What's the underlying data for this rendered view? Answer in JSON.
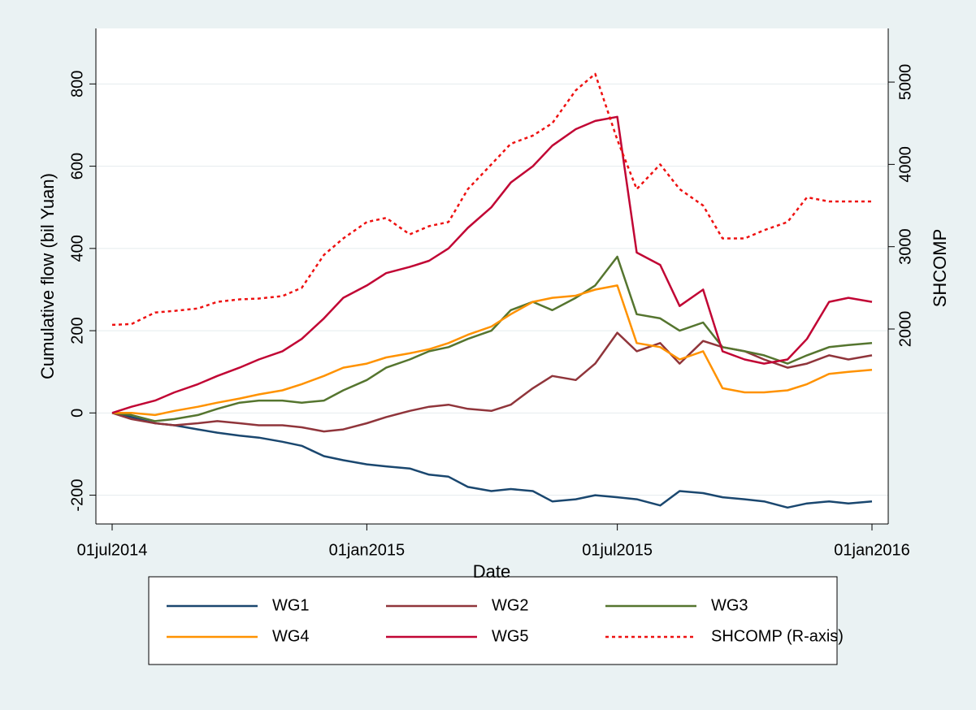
{
  "chart_data": {
    "type": "line",
    "x_title": "Date",
    "y_title": "Cumulative flow (bil Yuan)",
    "y2_title": "SHCOMP",
    "x": [
      "2014-07-01",
      "2014-07-15",
      "2014-08-01",
      "2014-08-15",
      "2014-09-01",
      "2014-09-15",
      "2014-10-01",
      "2014-10-15",
      "2014-11-01",
      "2014-11-15",
      "2014-12-01",
      "2014-12-15",
      "2015-01-01",
      "2015-01-15",
      "2015-02-01",
      "2015-02-15",
      "2015-03-01",
      "2015-03-15",
      "2015-04-01",
      "2015-04-15",
      "2015-05-01",
      "2015-05-15",
      "2015-06-01",
      "2015-06-15",
      "2015-07-01",
      "2015-07-15",
      "2015-08-01",
      "2015-08-15",
      "2015-09-01",
      "2015-09-15",
      "2015-10-01",
      "2015-10-15",
      "2015-11-01",
      "2015-11-15",
      "2015-12-01",
      "2015-12-15",
      "2016-01-01"
    ],
    "xlim": [
      "2014-07-01",
      "2016-01-01"
    ],
    "xticks": [
      {
        "value": "2014-07-01",
        "label": "01jul2014"
      },
      {
        "value": "2015-01-01",
        "label": "01jan2015"
      },
      {
        "value": "2015-07-01",
        "label": "01jul2015"
      },
      {
        "value": "2016-01-01",
        "label": "01jan2016"
      }
    ],
    "ylim": [
      -270,
      935
    ],
    "yticks": [
      -200,
      0,
      200,
      400,
      600,
      800
    ],
    "y2lim": [
      -369,
      5652
    ],
    "y2ticks": [
      2000,
      3000,
      4000,
      5000
    ],
    "grid": true,
    "series": [
      {
        "name": "WG1",
        "color": "#1a476f",
        "values": [
          0,
          -10,
          -25,
          -30,
          -40,
          -48,
          -55,
          -60,
          -70,
          -80,
          -105,
          -115,
          -125,
          -130,
          -135,
          -150,
          -155,
          -180,
          -190,
          -185,
          -190,
          -215,
          -210,
          -200,
          -205,
          -210,
          -225,
          -190,
          -195,
          -205,
          -210,
          -215,
          -230,
          -220,
          -215,
          -220,
          -215
        ]
      },
      {
        "name": "WG2",
        "color": "#90353b",
        "values": [
          0,
          -15,
          -25,
          -30,
          -25,
          -20,
          -25,
          -30,
          -30,
          -35,
          -45,
          -40,
          -25,
          -10,
          5,
          15,
          20,
          10,
          5,
          20,
          60,
          90,
          80,
          120,
          195,
          150,
          170,
          120,
          175,
          160,
          150,
          130,
          110,
          120,
          140,
          130,
          140
        ]
      },
      {
        "name": "WG3",
        "color": "#55752f",
        "values": [
          0,
          -5,
          -20,
          -15,
          -5,
          10,
          25,
          30,
          30,
          25,
          30,
          55,
          80,
          110,
          130,
          150,
          160,
          180,
          200,
          250,
          270,
          250,
          280,
          310,
          380,
          240,
          230,
          200,
          220,
          160,
          150,
          140,
          120,
          140,
          160,
          165,
          170
        ]
      },
      {
        "name": "WG4",
        "color": "#ff9200",
        "values": [
          0,
          0,
          -5,
          5,
          15,
          25,
          35,
          45,
          55,
          70,
          90,
          110,
          120,
          135,
          145,
          155,
          170,
          190,
          210,
          240,
          270,
          280,
          285,
          300,
          310,
          170,
          160,
          130,
          150,
          60,
          50,
          50,
          55,
          70,
          95,
          100,
          105
        ]
      },
      {
        "name": "WG5",
        "color": "#c10534",
        "values": [
          0,
          15,
          30,
          50,
          70,
          90,
          110,
          130,
          150,
          180,
          230,
          280,
          310,
          340,
          355,
          370,
          400,
          450,
          500,
          560,
          600,
          650,
          690,
          710,
          720,
          390,
          360,
          260,
          300,
          150,
          130,
          120,
          130,
          180,
          270,
          280,
          270
        ]
      },
      {
        "name": "SHCOMP (R-axis)",
        "color": "#ee1111",
        "dashed": true,
        "axis": "y2",
        "values": [
          2050,
          2060,
          2200,
          2220,
          2250,
          2330,
          2360,
          2370,
          2400,
          2500,
          2900,
          3100,
          3300,
          3350,
          3150,
          3250,
          3300,
          3700,
          4000,
          4250,
          4350,
          4500,
          4900,
          5100,
          4300,
          3700,
          4000,
          3700,
          3500,
          3100,
          3100,
          3200,
          3300,
          3600,
          3550,
          3550,
          3550
        ]
      }
    ]
  }
}
